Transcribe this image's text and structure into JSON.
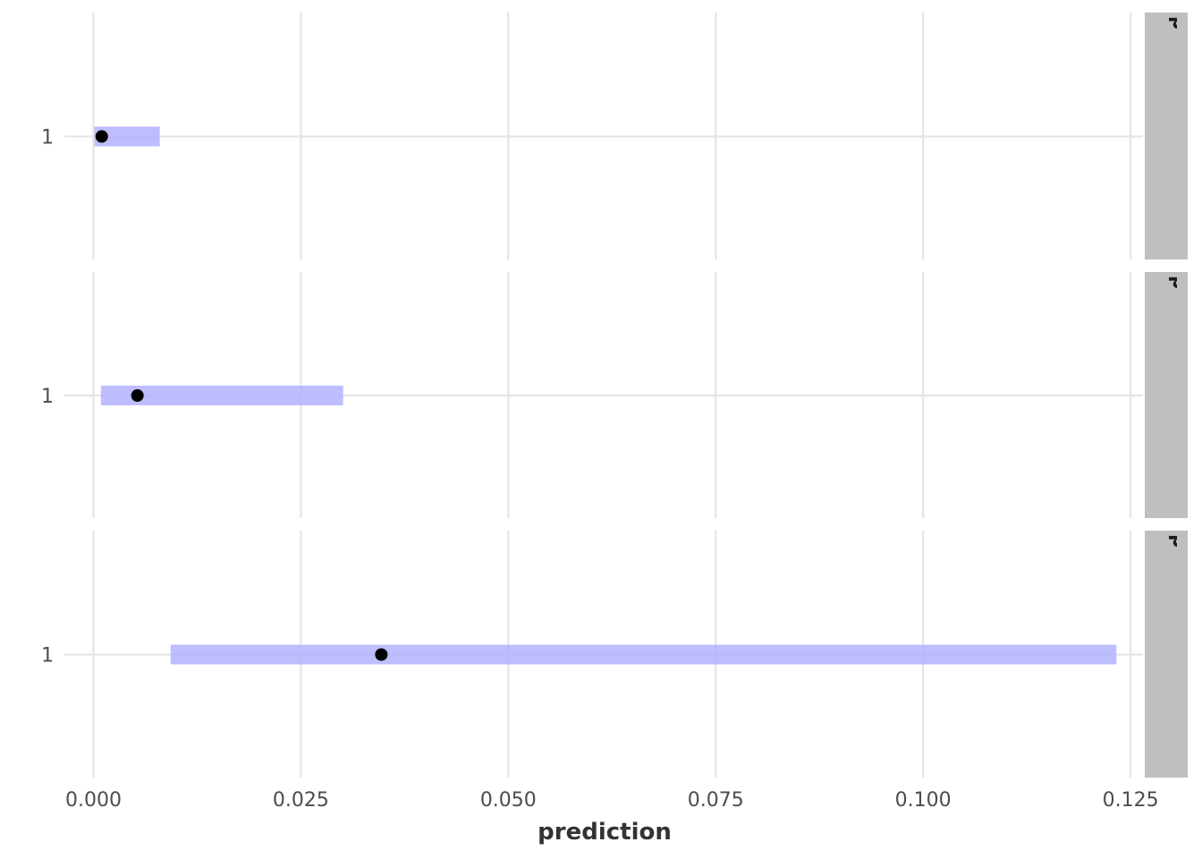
{
  "chart_data": {
    "type": "pointrange",
    "x_axis": {
      "label": "prediction",
      "ticks": [
        0.0,
        0.025,
        0.05,
        0.075,
        0.1,
        0.125
      ],
      "tick_labels": [
        "0.000",
        "0.025",
        "0.050",
        "0.075",
        "0.100",
        "0.125"
      ],
      "xlim": [
        -0.0035,
        0.1265
      ]
    },
    "y_axis": {
      "tick_labels": [
        "1"
      ]
    },
    "facets": [
      {
        "strip": "pretty_condition: poin",
        "y": "1",
        "point": 0.001,
        "interval": [
          0.0001,
          0.008
        ]
      },
      {
        "strip": "pretty_condition: cros",
        "y": "1",
        "point": 0.0053,
        "interval": [
          0.0009,
          0.0301
        ]
      },
      {
        "strip": "pretty_condition: arro",
        "y": "1",
        "point": 0.0347,
        "interval": [
          0.0093,
          0.1233
        ]
      }
    ],
    "interval_color": "#b3b3ff",
    "point_color": "#000000",
    "grid": true,
    "strip_color": "#bfbfbf"
  }
}
